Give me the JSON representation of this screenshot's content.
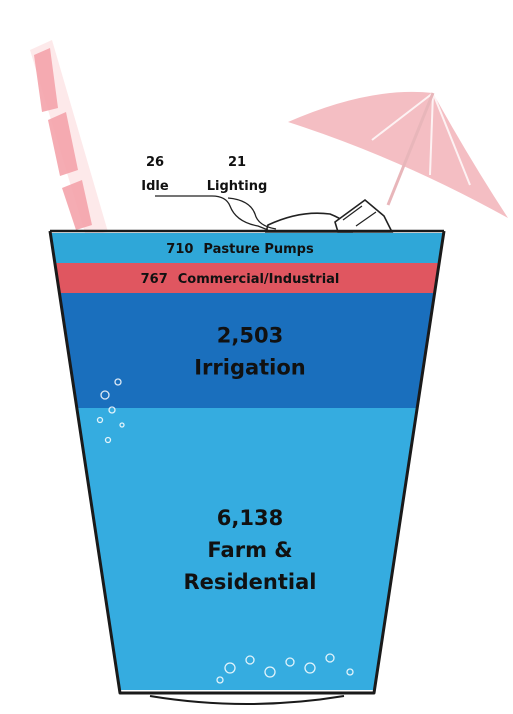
{
  "chart_data": {
    "type": "bar",
    "title": "",
    "xlabel": "",
    "ylabel": "",
    "unit": "",
    "stacked": true,
    "categories": [
      "Idle",
      "Lighting",
      "Pasture Pumps",
      "Commercial/Industrial",
      "Irrigation",
      "Farm & Residential"
    ],
    "values": [
      26,
      21,
      710,
      767,
      2503,
      6138
    ],
    "value_labels": [
      "26",
      "21",
      "710",
      "767",
      "2,503",
      "6,138"
    ],
    "label_lines": [
      [
        "Farm &",
        "Residential"
      ],
      [
        "Irrigation"
      ]
    ],
    "colors": {
      "Idle": "#ffffff",
      "Lighting": "#ffffff",
      "Pasture Pumps": "#2fa7d8",
      "Commercial/Industrial": "#e05660",
      "Irrigation": "#1a6fbd",
      "Farm & Residential": "#35ace0"
    }
  },
  "decoration": {
    "umbrella_color": "#f2b3b8",
    "straw_color": "#f4a3ab",
    "cup_outline": "#1a1a1a",
    "icons": [
      "umbrella-icon",
      "straw-icon",
      "ice-cube-icon",
      "bubbles-icon"
    ]
  }
}
